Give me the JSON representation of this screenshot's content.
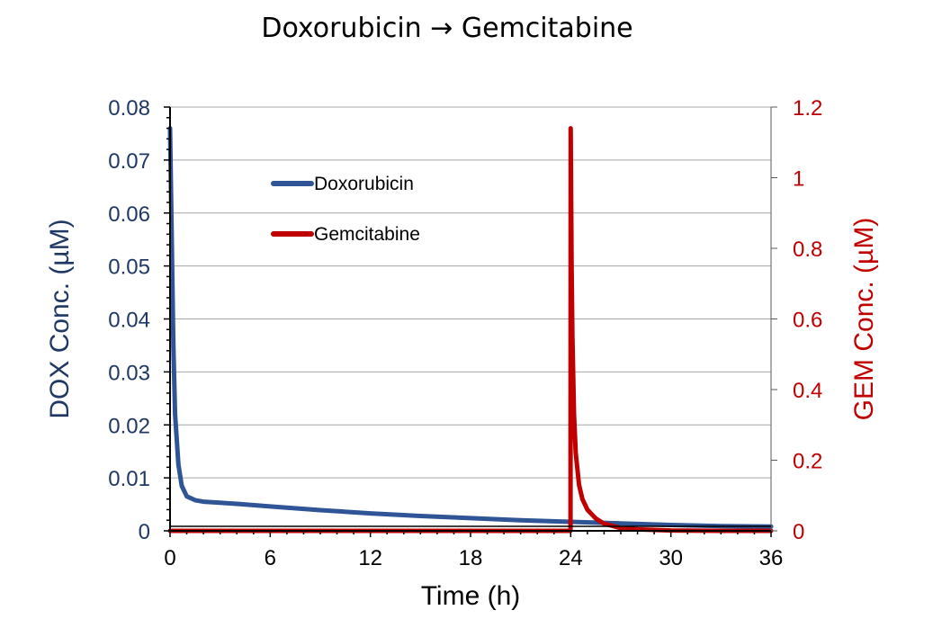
{
  "chart_data": {
    "type": "line",
    "title": "Doxorubicin → Gemcitabine",
    "xlabel": "Time (h)",
    "ylabel_left": "DOX Conc. (µM)",
    "ylabel_right": "GEM Conc. (µM)",
    "xlim": [
      0,
      36
    ],
    "ylim_left": [
      0,
      0.08
    ],
    "ylim_right": [
      0,
      1.2
    ],
    "x_ticks": [
      "0",
      "6",
      "12",
      "18",
      "24",
      "30",
      "36"
    ],
    "y_left_ticks": [
      "0",
      "0.01",
      "0.02",
      "0.03",
      "0.04",
      "0.05",
      "0.06",
      "0.07",
      "0.08"
    ],
    "y_right_ticks": [
      "0",
      "0.2",
      "0.4",
      "0.6",
      "0.8",
      "1",
      "1.2"
    ],
    "grid": true,
    "legend_position": "top-left",
    "series": [
      {
        "name": "Doxorubicin",
        "axis": "left",
        "color": "#2F5597",
        "x": [
          0,
          0.1,
          0.2,
          0.3,
          0.5,
          0.7,
          1.0,
          1.5,
          2,
          3,
          4,
          6,
          9,
          12,
          15,
          18,
          21,
          24,
          27,
          30,
          33,
          36
        ],
        "y": [
          0.076,
          0.055,
          0.035,
          0.022,
          0.0125,
          0.0085,
          0.0065,
          0.0058,
          0.0055,
          0.0053,
          0.0051,
          0.0046,
          0.0039,
          0.0033,
          0.0028,
          0.0024,
          0.002,
          0.0017,
          0.0014,
          0.0011,
          0.0009,
          0.0008
        ]
      },
      {
        "name": "Gemcitabine",
        "axis": "right",
        "color": "#C00000",
        "x": [
          0,
          23.99,
          24.0,
          24.05,
          24.1,
          24.2,
          24.3,
          24.5,
          24.7,
          25.0,
          25.5,
          26.0,
          27.0,
          28.0,
          30.0,
          33.0,
          36.0
        ],
        "y": [
          0,
          0,
          1.14,
          0.75,
          0.55,
          0.33,
          0.22,
          0.13,
          0.09,
          0.06,
          0.035,
          0.02,
          0.008,
          0.004,
          0.001,
          0,
          0
        ]
      }
    ]
  }
}
